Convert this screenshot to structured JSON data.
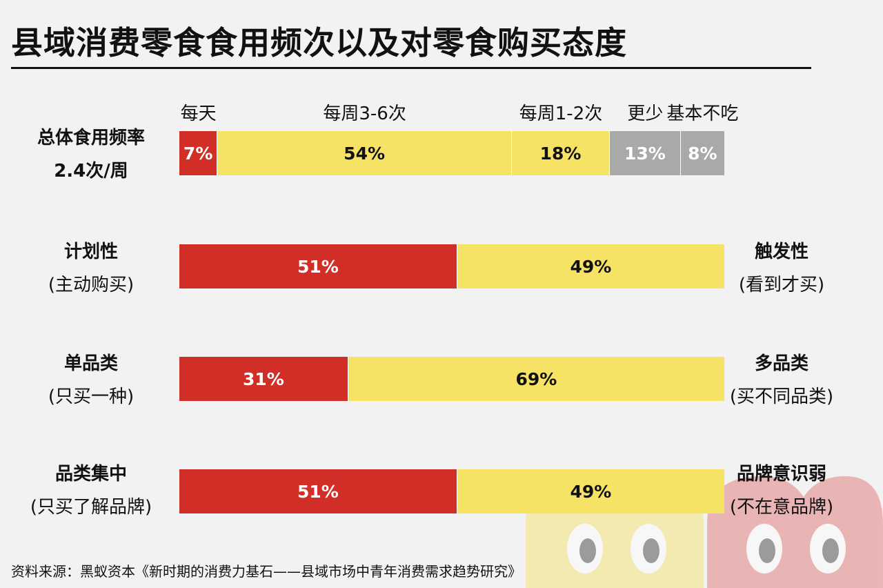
{
  "title": "县域消费零食食用频次以及对零食购买态度",
  "source": "资料来源：黑蚁资本《新时期的消费力基石——县域市场中青年消费需求趋势研究》",
  "colors": {
    "red": "#d12e27",
    "yellow": "#f6e264",
    "gray": "#a9a9a9"
  },
  "chart_data": {
    "type": "bar",
    "orientation": "horizontal-stacked-100",
    "frequency_categories": [
      "每天",
      "每周3-6次",
      "每周1-2次",
      "更少",
      "基本不吃"
    ],
    "rows": [
      {
        "left_label": "总体食用频率",
        "left_sub": "2.4次/周",
        "right_label": "",
        "right_sub": "",
        "values": [
          7,
          54,
          18,
          13,
          8
        ],
        "labels": [
          "7%",
          "54%",
          "18%",
          "13%",
          "8%"
        ],
        "colors": [
          "red",
          "yellow",
          "yellow",
          "gray",
          "gray"
        ]
      },
      {
        "left_label": "计划性",
        "left_sub": "(主动购买)",
        "right_label": "触发性",
        "right_sub": "(看到才买)",
        "values": [
          51,
          49
        ],
        "labels": [
          "51%",
          "49%"
        ],
        "colors": [
          "red",
          "yellow"
        ]
      },
      {
        "left_label": "单品类",
        "left_sub": "(只买一种)",
        "right_label": "多品类",
        "right_sub": "(买不同品类)",
        "values": [
          31,
          69
        ],
        "labels": [
          "31%",
          "69%"
        ],
        "colors": [
          "red",
          "yellow"
        ]
      },
      {
        "left_label": "品类集中",
        "left_sub": "(只买了解品牌)",
        "right_label": "品牌意识弱",
        "right_sub": "(不在意品牌)",
        "values": [
          51,
          49
        ],
        "labels": [
          "51%",
          "49%"
        ],
        "colors": [
          "red",
          "yellow"
        ]
      }
    ]
  }
}
